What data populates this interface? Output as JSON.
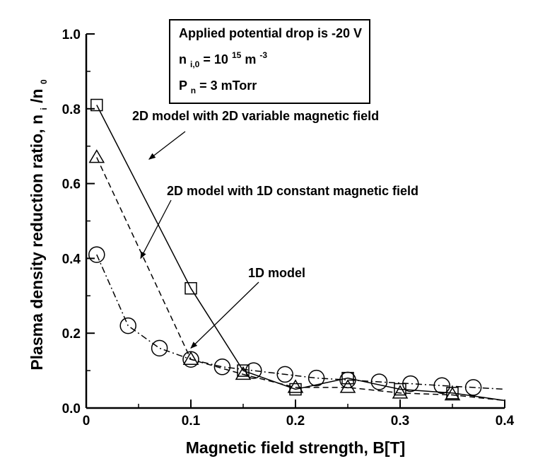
{
  "chart_data": {
    "type": "line",
    "xlabel": "Magnetic field strength, B[T]",
    "ylabel": "Plasma density reduction ratio, n",
    "ylabel_sub1": "i",
    "ylabel_mid": "/n",
    "ylabel_sub2": "0",
    "xlim": [
      0,
      0.4
    ],
    "ylim": [
      0,
      1.0
    ],
    "x_ticks": [
      "0",
      "0.1",
      "0.2",
      "0.3",
      "0.4"
    ],
    "y_ticks": [
      "0.0",
      "0.2",
      "0.4",
      "0.6",
      "0.8",
      "1.0"
    ],
    "grid": false,
    "info_box": {
      "line1": "Applied potential drop is -20 V",
      "line2_main": "n",
      "line2_sub": "i,0",
      "line2_eq": " = 10",
      "line2_exp": "15",
      "line2_unit": " m",
      "line2_unit_exp": "-3",
      "line3_main": "P",
      "line3_sub": "n",
      "line3_rest": " = 3 mTorr"
    },
    "series": [
      {
        "marker": "square",
        "line_style": "solid",
        "annotation": "2D model with 2D variable magnetic field",
        "x": [
          0.01,
          0.1,
          0.15,
          0.2,
          0.25,
          0.3,
          0.35,
          0.4
        ],
        "y": [
          0.81,
          0.32,
          0.1,
          0.05,
          0.08,
          0.05,
          0.04,
          0.02
        ]
      },
      {
        "marker": "triangle",
        "line_style": "dashed",
        "annotation": "2D model with 1D constant magnetic field",
        "x": [
          0.01,
          0.1,
          0.15,
          0.2,
          0.25,
          0.3,
          0.35,
          0.4
        ],
        "y": [
          0.67,
          0.13,
          0.09,
          0.055,
          0.055,
          0.04,
          0.035,
          0.02
        ],
        "marker_x": [
          0.01,
          0.1,
          0.15,
          0.2,
          0.25,
          0.3,
          0.35
        ]
      },
      {
        "marker": "circle",
        "line_style": "dashdot",
        "annotation": "1D model",
        "x": [
          0.01,
          0.04,
          0.07,
          0.1,
          0.13,
          0.16,
          0.19,
          0.22,
          0.25,
          0.28,
          0.31,
          0.34,
          0.37,
          0.4
        ],
        "y": [
          0.41,
          0.22,
          0.16,
          0.13,
          0.11,
          0.1,
          0.09,
          0.08,
          0.075,
          0.07,
          0.065,
          0.06,
          0.055,
          0.05
        ]
      }
    ]
  }
}
